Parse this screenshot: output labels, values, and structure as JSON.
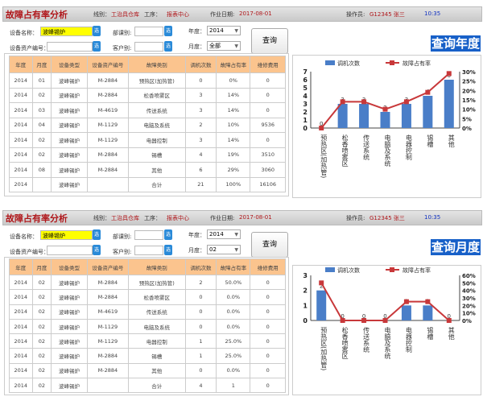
{
  "header": {
    "title": "故障占有率分析",
    "line_label": "线别：",
    "line_value": "工治具仓库",
    "process_label": "工序：",
    "process_value": "报表中心",
    "date_label": "作业日期:",
    "date_value": "2017-08-01",
    "operator_label": "操作员:",
    "operator_value": "G12345 张三",
    "time": "10:35"
  },
  "form": {
    "device_name_label": "设备名称：",
    "device_name_value": "波峰锡炉",
    "asset_label": "设备资产编号：",
    "asset_value": "",
    "dept_label": "部课别:",
    "dept_value": "",
    "customer_label": "客户别:",
    "customer_value": "",
    "select_btn": "选",
    "year_label": "年度：",
    "month_label": "月度：",
    "query_btn": "查询"
  },
  "columns": [
    "年度",
    "月度",
    "设备类型",
    "设备资产编号",
    "故障类别",
    "调机次数",
    "故障占有率",
    "维修费用"
  ],
  "colors": {
    "bar": "#4a7ec8",
    "line": "#c8383a",
    "header_bg": "#fbc48e",
    "title": "#b0171b"
  },
  "panels": [
    {
      "mode_label": "查询年度",
      "year": "2014",
      "month": "全部",
      "rows": [
        [
          "2014",
          "01",
          "波峰锡炉",
          "M-2884",
          "预热区(加热管)",
          "0",
          "0%",
          "0"
        ],
        [
          "2014",
          "02",
          "波峰锡炉",
          "M-2884",
          "松香喷雾区",
          "3",
          "14%",
          "0"
        ],
        [
          "2014",
          "03",
          "波峰锡炉",
          "M-4619",
          "传送系统",
          "3",
          "14%",
          "0"
        ],
        [
          "2014",
          "04",
          "波峰锡炉",
          "M-1129",
          "电脑及系统",
          "2",
          "10%",
          "9536"
        ],
        [
          "2014",
          "02",
          "波峰锡炉",
          "M-1129",
          "电器控制",
          "3",
          "14%",
          "0"
        ],
        [
          "2014",
          "02",
          "波峰锡炉",
          "M-2884",
          "锡槽",
          "4",
          "19%",
          "3510"
        ],
        [
          "2014",
          "08",
          "波峰锡炉",
          "M-2884",
          "其他",
          "6",
          "29%",
          "3060"
        ],
        [
          "2014",
          "",
          "波峰锡炉",
          "",
          "合计",
          "21",
          "100%",
          "16106"
        ]
      ],
      "chart_data": {
        "type": "bar",
        "categories": [
          "预热区(加热管)",
          "松香喷雾区",
          "传送系统",
          "电脑及系统",
          "电器控制",
          "锡槽",
          "其他"
        ],
        "series": [
          {
            "name": "调机次数",
            "type": "bar",
            "axis": "left",
            "values": [
              0,
              3,
              3,
              2,
              3,
              4,
              6
            ]
          },
          {
            "name": "故障占有率",
            "type": "line",
            "axis": "right",
            "values": [
              0,
              14,
              14,
              10,
              14,
              19,
              29
            ]
          }
        ],
        "ylim_left": [
          0,
          7
        ],
        "yticks_left": [
          "0",
          "1",
          "2",
          "3",
          "4",
          "5",
          "6",
          "7"
        ],
        "ylim_right": [
          0,
          30
        ],
        "yticks_right": [
          "0%",
          "5%",
          "10%",
          "15%",
          "20%",
          "25%",
          "30%"
        ],
        "legend": "top"
      }
    },
    {
      "mode_label": "查询月度",
      "year": "2014",
      "month": "02",
      "rows": [
        [
          "2014",
          "02",
          "波峰锡炉",
          "M-2884",
          "预热区(加热管)",
          "2",
          "50.0%",
          "0"
        ],
        [
          "2014",
          "02",
          "波峰锡炉",
          "M-2884",
          "松香喷雾区",
          "0",
          "0.0%",
          "0"
        ],
        [
          "2014",
          "02",
          "波峰锡炉",
          "M-4619",
          "传送系统",
          "0",
          "0.0%",
          "0"
        ],
        [
          "2014",
          "02",
          "波峰锡炉",
          "M-1129",
          "电脑及系统",
          "0",
          "0.0%",
          "0"
        ],
        [
          "2014",
          "02",
          "波峰锡炉",
          "M-1129",
          "电器控制",
          "1",
          "25.0%",
          "0"
        ],
        [
          "2014",
          "02",
          "波峰锡炉",
          "M-2884",
          "锡槽",
          "1",
          "25.0%",
          "0"
        ],
        [
          "2014",
          "02",
          "波峰锡炉",
          "M-2884",
          "其他",
          "0",
          "0.0%",
          "0"
        ],
        [
          "2014",
          "02",
          "波峰锡炉",
          "",
          "合计",
          "4",
          "1",
          "0"
        ]
      ],
      "chart_data": {
        "type": "bar",
        "categories": [
          "预热区(加热管)",
          "松香喷雾区",
          "传送系统",
          "电脑及系统",
          "电器控制",
          "锡槽",
          "其他"
        ],
        "series": [
          {
            "name": "调机次数",
            "type": "bar",
            "axis": "left",
            "values": [
              2,
              0,
              0,
              0,
              1,
              1,
              0
            ]
          },
          {
            "name": "故障占有率",
            "type": "line",
            "axis": "right",
            "values": [
              50,
              0,
              0,
              0,
              25,
              25,
              0
            ]
          }
        ],
        "ylim_left": [
          0,
          3
        ],
        "yticks_left": [
          "0",
          "1",
          "2",
          "3"
        ],
        "ylim_right": [
          0,
          60
        ],
        "yticks_right": [
          "0%",
          "10%",
          "20%",
          "30%",
          "40%",
          "50%",
          "60%"
        ],
        "legend": "top"
      }
    }
  ]
}
